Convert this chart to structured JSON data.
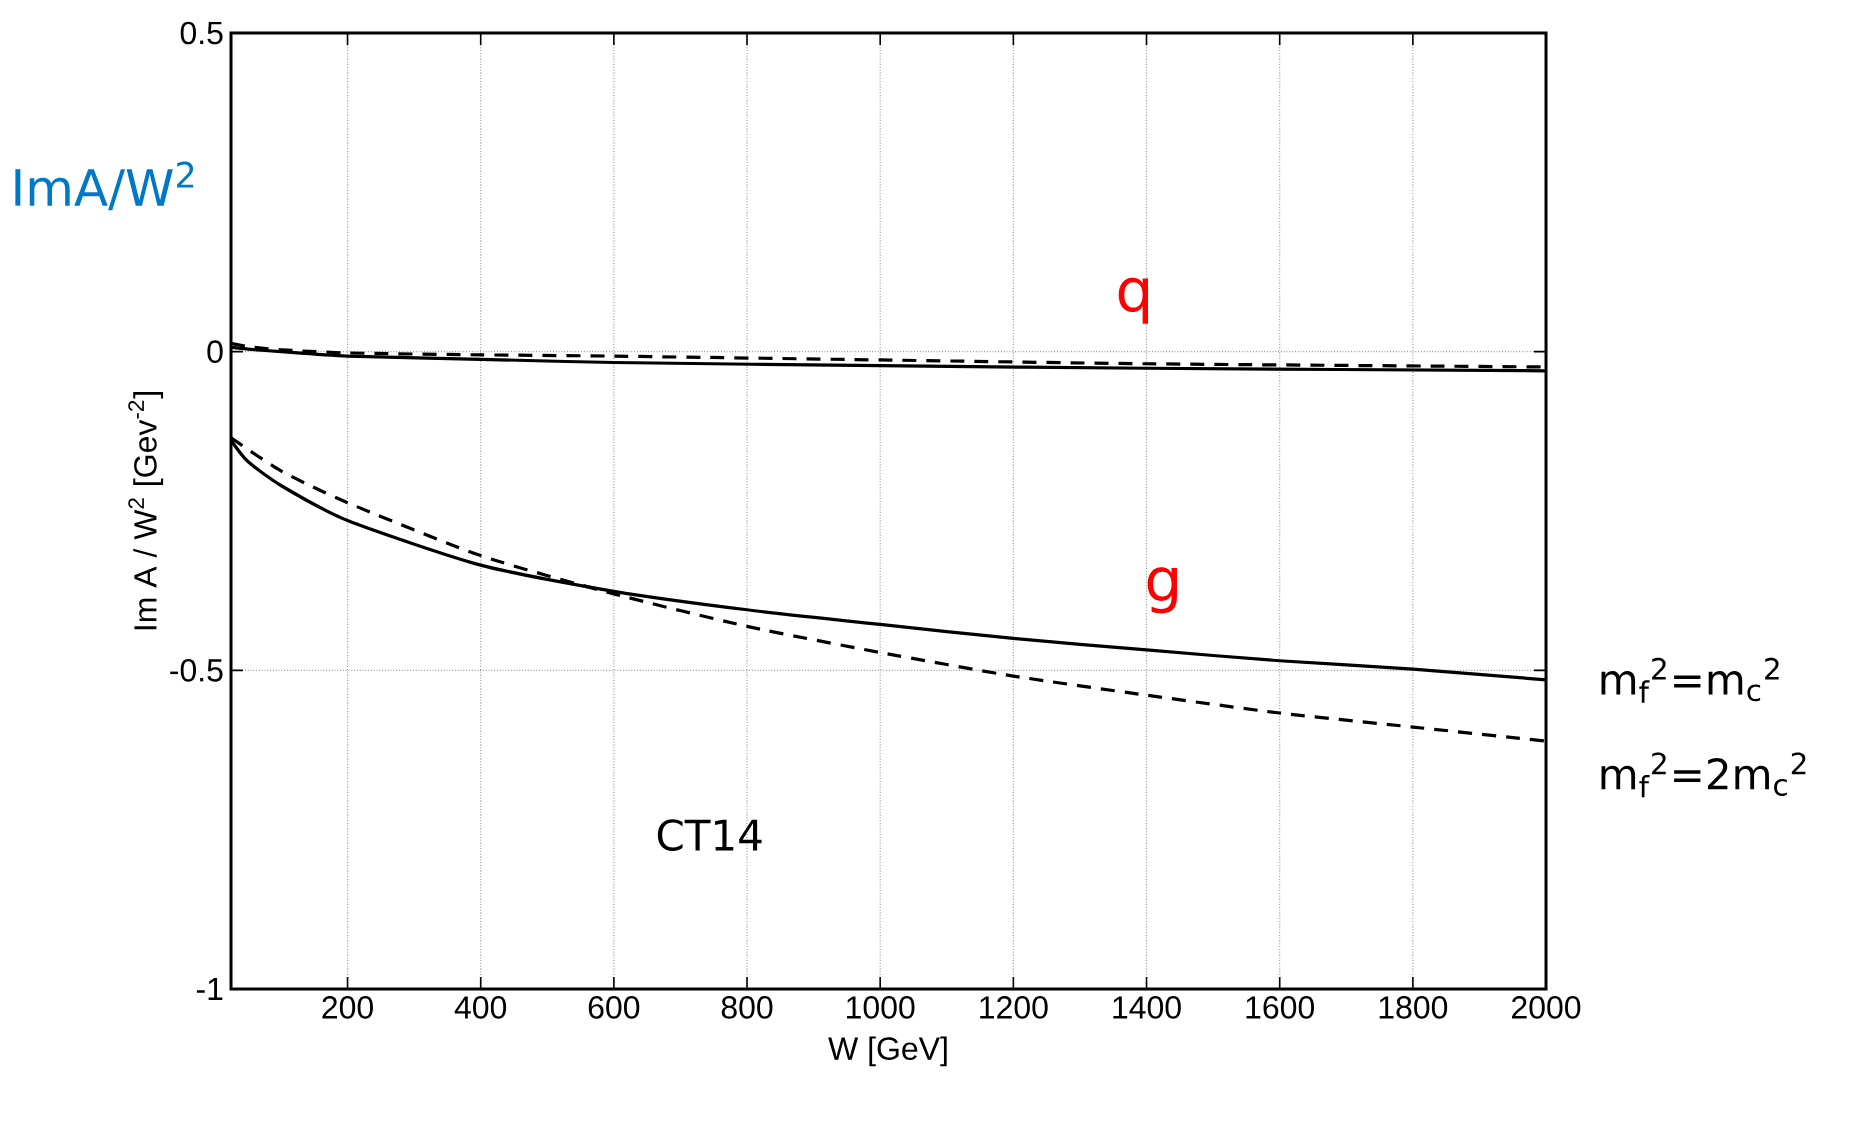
{
  "chart_data": {
    "type": "line",
    "xlabel": "W [GeV]",
    "ylabel": "Im A / W$^{2}$ [Gev$^{-2}$]",
    "xlim": [
      25,
      2000
    ],
    "xticks": [
      200,
      400,
      600,
      800,
      1000,
      1200,
      1400,
      1600,
      1800,
      2000
    ],
    "ylim": [
      -1,
      0.5
    ],
    "yticks": [
      -1,
      -0.5,
      0,
      0.5
    ],
    "grid": true,
    "series": [
      {
        "color": "#000000",
        "line_style": "solid",
        "x": [
          25,
          50,
          100,
          200,
          400,
          600,
          1000,
          1400,
          2000
        ],
        "values": [
          0.007,
          0.004,
          0.0,
          -0.007,
          -0.012,
          -0.017,
          -0.022,
          -0.026,
          -0.03
        ]
      },
      {
        "color": "#000000",
        "line_style": "dashed",
        "x": [
          25,
          50,
          100,
          200,
          400,
          600,
          1000,
          1400,
          2000
        ],
        "values": [
          0.013,
          0.008,
          0.003,
          -0.002,
          -0.005,
          -0.007,
          -0.013,
          -0.019,
          -0.024
        ]
      },
      {
        "color": "#000000",
        "line_style": "solid",
        "x": [
          25,
          50,
          100,
          200,
          400,
          600,
          800,
          1000,
          1200,
          1400,
          1600,
          1800,
          2000
        ],
        "values": [
          -0.139,
          -0.172,
          -0.21,
          -0.265,
          -0.335,
          -0.376,
          -0.405,
          -0.428,
          -0.45,
          -0.468,
          -0.485,
          -0.498,
          -0.515
        ]
      },
      {
        "color": "#000000",
        "line_style": "dashed",
        "x": [
          25,
          100,
          200,
          400,
          600,
          800,
          1000,
          1200,
          1400,
          1600,
          1800,
          2000
        ],
        "values": [
          -0.135,
          -0.187,
          -0.237,
          -0.32,
          -0.38,
          -0.431,
          -0.472,
          -0.509,
          -0.539,
          -0.567,
          -0.589,
          -0.611
        ]
      }
    ],
    "annotations": [
      "q",
      "g",
      "ImA/W$^{2}$",
      "m$_{f}$$^{2}$=m$_{c}$$^{2}$",
      "m$_{f}$$^{2}$=2m$_{c}$$^{2}$",
      "CT14"
    ]
  }
}
